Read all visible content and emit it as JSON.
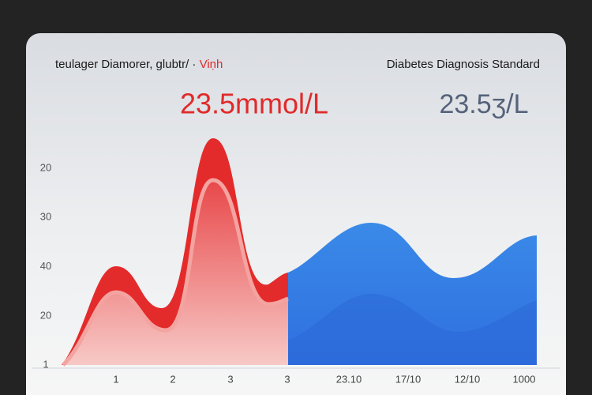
{
  "header": {
    "left_title": "teulager Diamorer, glubtr/ ·",
    "left_title_accent": "Viṇh",
    "right_title": "Diabetes Diagnosis Standard"
  },
  "readings": {
    "left": "23.5mmol/L",
    "right": "23.5ʒ/L"
  },
  "y_labels": [
    "20",
    "30",
    "40",
    "20",
    "1"
  ],
  "x_labels": [
    "1",
    "2",
    "3",
    "3",
    "23.10",
    "17/10",
    "12/10",
    "1000"
  ]
}
